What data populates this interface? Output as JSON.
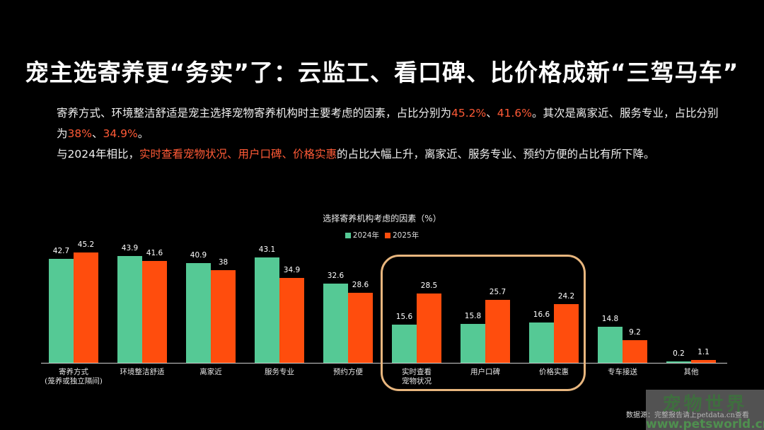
{
  "title": "宠主选寄养更“务实”了：云监工、看口碑、比价格成新“三驾马车”",
  "paragraph1": {
    "part1": "寄养方式、环境整洁舒适是宠主选择宠物寄养机构时主要考虑的因素，占比分别为",
    "hl1": "45.2%",
    "sep1": "、",
    "hl2": "41.6%",
    "part2": "。其次是离家近、服务专业，占比分别为",
    "hl3": "38%",
    "sep2": "、",
    "hl4": "34.9%",
    "part3": "。"
  },
  "paragraph2": {
    "part1": "与2024年相比，",
    "hl1": "实时查看宠物状况、用户口碑、价格实惠",
    "part2": "的占比大幅上升，离家近、服务专业、预约方便的占比有所下降。"
  },
  "colors": {
    "series_2024": "#55c995",
    "series_2025": "#ff4d0d",
    "highlight_text": "#ff5a36",
    "highlight_box": "#e8b67e"
  },
  "chart_data": {
    "type": "bar",
    "title": "选择寄养机构考虑的因素（%）",
    "xlabel": "",
    "ylabel": "",
    "grid": false,
    "legend_position": "top",
    "categories": [
      "寄养方式\n(笼养或独立隔间)",
      "环境整洁舒适",
      "离家近",
      "服务专业",
      "预约方便",
      "实时查看\n宠物状况",
      "用户口碑",
      "价格实惠",
      "专车接送",
      "其他"
    ],
    "series": [
      {
        "name": "2024年",
        "values": [
          42.7,
          43.9,
          40.9,
          43.1,
          32.6,
          15.6,
          15.8,
          16.6,
          14.8,
          0.2
        ]
      },
      {
        "name": "2025年",
        "values": [
          45.2,
          41.6,
          38,
          34.9,
          28.6,
          28.5,
          25.7,
          24.2,
          9.2,
          1.1
        ]
      }
    ],
    "highlighted_categories": [
      "实时查看宠物状况",
      "用户口碑",
      "价格实惠"
    ]
  },
  "chart": {
    "title": "选择寄养机构考虑的因素（%）",
    "legend": [
      "2024年",
      "2025年"
    ],
    "categories": [
      {
        "line1": "寄养方式",
        "line2": "(笼养或独立隔间)"
      },
      {
        "line1": "环境整洁舒适",
        "line2": ""
      },
      {
        "line1": "离家近",
        "line2": ""
      },
      {
        "line1": "服务专业",
        "line2": ""
      },
      {
        "line1": "预约方便",
        "line2": ""
      },
      {
        "line1": "实时查看",
        "line2": "宠物状况"
      },
      {
        "line1": "用户口碑",
        "line2": ""
      },
      {
        "line1": "价格实惠",
        "line2": ""
      },
      {
        "line1": "专车接送",
        "line2": ""
      },
      {
        "line1": "其他",
        "line2": ""
      }
    ],
    "labels_2024": [
      "42.7",
      "43.9",
      "40.9",
      "43.1",
      "32.6",
      "15.6",
      "15.8",
      "16.6",
      "14.8",
      "0.2"
    ],
    "labels_2025": [
      "45.2",
      "41.6",
      "38",
      "34.9",
      "28.6",
      "28.5",
      "25.7",
      "24.2",
      "9.2",
      "1.1"
    ]
  },
  "source": "数据源：完整报告请上petdata.cn查看",
  "watermark": {
    "top": "宠物世界",
    "bottom": "www.petsworld.cn"
  }
}
